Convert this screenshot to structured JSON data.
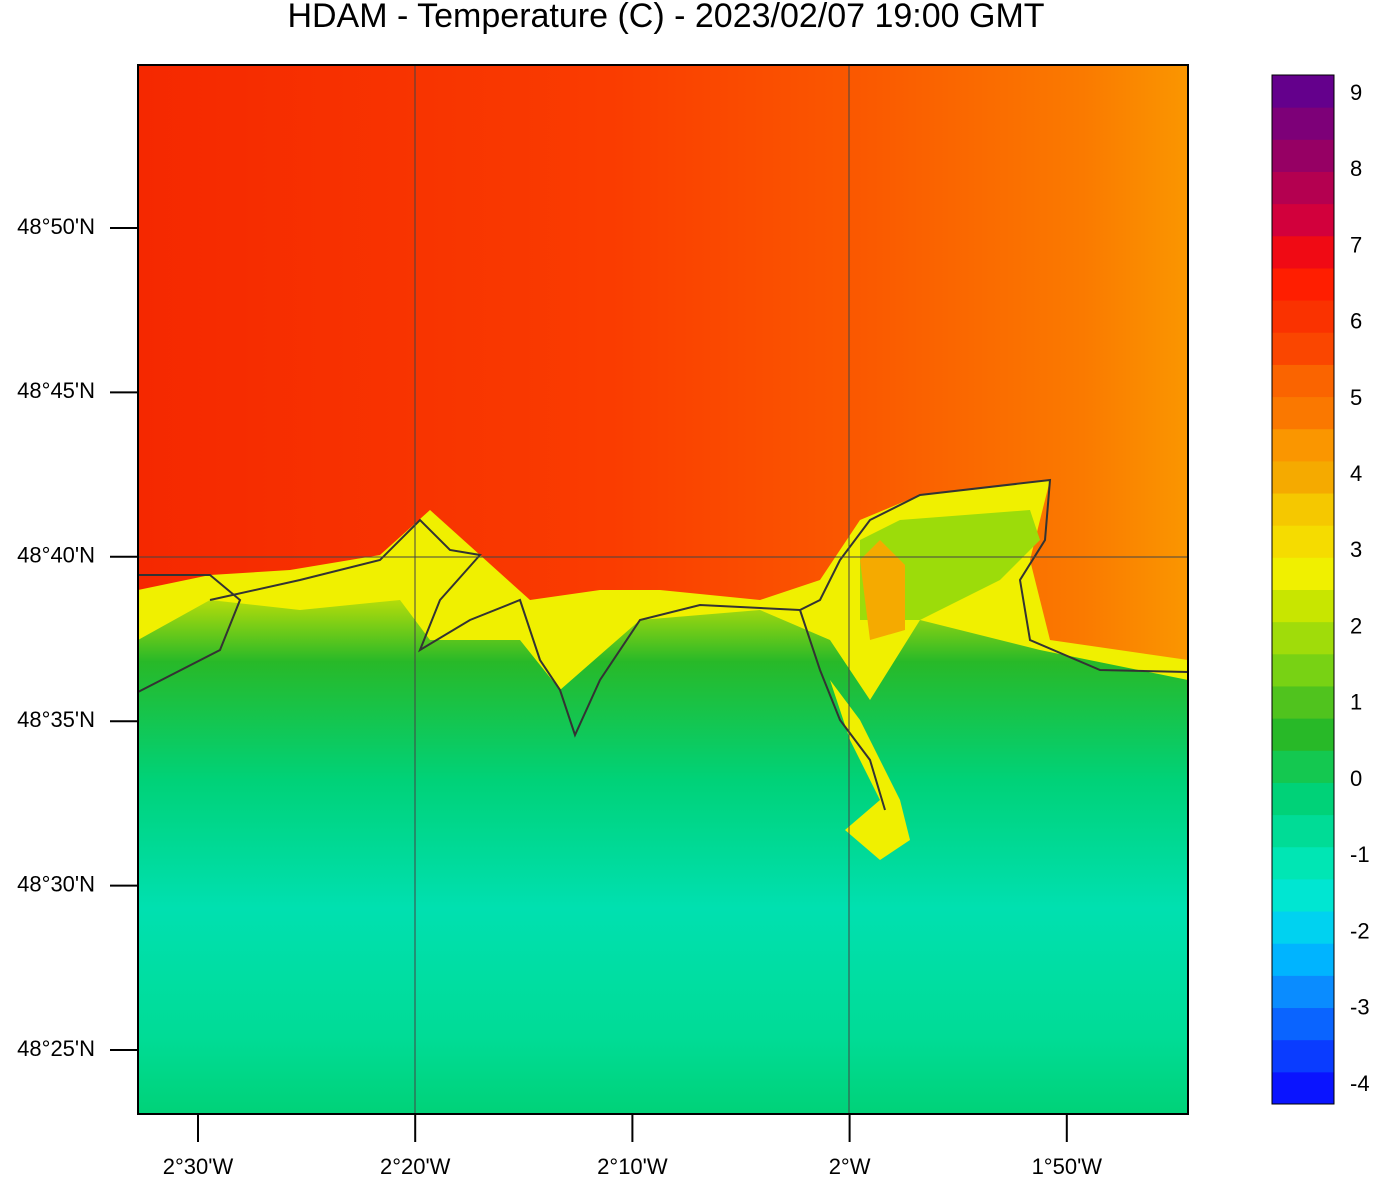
{
  "title": "HDAM - Temperature (C)  -  2023/02/07  19:00 GMT",
  "map": {
    "lat_ticks": [
      "48°50'N",
      "48°45'N",
      "48°40'N",
      "48°35'N",
      "48°30'N",
      "48°25'N"
    ],
    "lon_ticks": [
      "2°30'W",
      "2°20'W",
      "2°10'W",
      "2°W",
      "1°50'W"
    ]
  },
  "colorbar": {
    "lim": [
      -4.25,
      9.25
    ],
    "ticks": [
      9,
      8,
      7,
      6,
      5,
      4,
      3,
      2,
      1,
      0,
      -1,
      -2,
      -3,
      -4
    ],
    "colors": [
      "#0a14ff",
      "#0a3cff",
      "#0a64ff",
      "#0a8cff",
      "#00b4ff",
      "#00d2f0",
      "#00e6d2",
      "#00e6b4",
      "#00dc96",
      "#00d278",
      "#14c850",
      "#28b928",
      "#50c31e",
      "#78d214",
      "#a0dc0a",
      "#c8e600",
      "#f0f000",
      "#f5dc00",
      "#f5c800",
      "#f5aa00",
      "#fa9600",
      "#fa7800",
      "#fa6400",
      "#fa4600",
      "#fa3200",
      "#ff1e00",
      "#f00a14",
      "#d2003c",
      "#b40050",
      "#960064",
      "#7d0078",
      "#64008c"
    ]
  }
}
